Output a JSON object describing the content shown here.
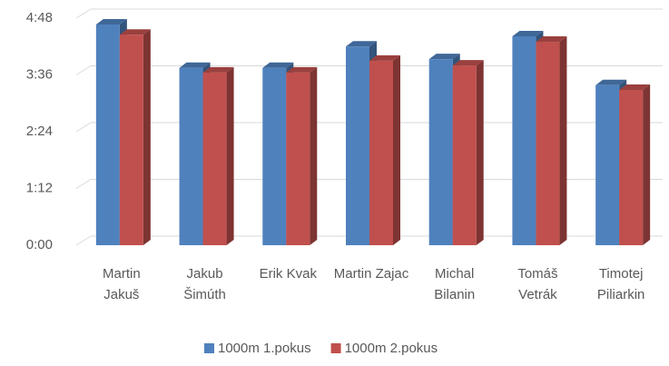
{
  "chart_data": {
    "type": "bar",
    "categories": [
      "Martin Jakuš",
      "Jakub Šimúth",
      "Erik Kvak",
      "Martin Zajac",
      "Michal Bilanin",
      "Tomáš Vetrák",
      "Timotej Piliarkin"
    ],
    "series": [
      {
        "name": "1000m 1.pokus",
        "color": "#4f81bd",
        "values": [
          280,
          225,
          225,
          252,
          236,
          265,
          203
        ]
      },
      {
        "name": "1000m 2.pokus",
        "color": "#c0504d",
        "values": [
          267,
          219,
          219,
          234,
          228,
          258,
          197
        ]
      }
    ],
    "ylim": [
      0,
      288
    ],
    "yticks": [
      {
        "value": 0,
        "label": "0:00"
      },
      {
        "value": 72,
        "label": "1:12"
      },
      {
        "value": 144,
        "label": "2:24"
      },
      {
        "value": 216,
        "label": "3:36"
      },
      {
        "value": 288,
        "label": "4:48"
      }
    ],
    "grid": true,
    "legend": "bottom"
  }
}
